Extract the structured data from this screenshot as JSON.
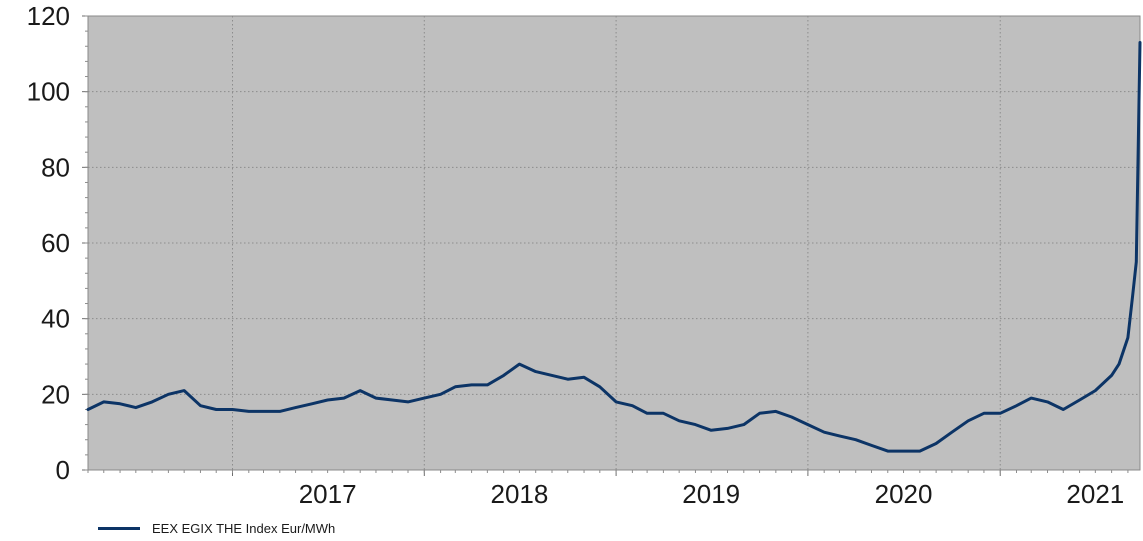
{
  "chart_data": {
    "type": "line",
    "title": "",
    "xlabel": "",
    "ylabel": "",
    "ylim": [
      0,
      120
    ],
    "xlim": [
      "2016-04-01",
      "2021-09-24"
    ],
    "y_ticks": [
      "0",
      "20",
      "40",
      "60",
      "80",
      "100",
      "120"
    ],
    "x_ticks": [
      {
        "label": "2017",
        "date": "2017-01-01"
      },
      {
        "label": "2018",
        "date": "2018-01-01"
      },
      {
        "label": "2019",
        "date": "2019-01-01"
      },
      {
        "label": "2020",
        "date": "2020-01-01"
      },
      {
        "label": "2021",
        "date": "2021-01-01"
      }
    ],
    "grid": true,
    "plot_background": "#bfbfbf",
    "legend_position": "bottom-left",
    "series": [
      {
        "name": "EEX EGIX THE Index Eur/MWh",
        "color": "#0c3466",
        "x": [
          "2016-04-01",
          "2016-05-01",
          "2016-06-01",
          "2016-07-01",
          "2016-08-01",
          "2016-09-01",
          "2016-10-01",
          "2016-11-01",
          "2016-12-01",
          "2017-01-01",
          "2017-02-01",
          "2017-03-01",
          "2017-04-01",
          "2017-05-01",
          "2017-06-01",
          "2017-07-01",
          "2017-08-01",
          "2017-09-01",
          "2017-10-01",
          "2017-11-01",
          "2017-12-01",
          "2018-01-01",
          "2018-02-01",
          "2018-03-01",
          "2018-04-01",
          "2018-05-01",
          "2018-06-01",
          "2018-07-01",
          "2018-08-01",
          "2018-09-01",
          "2018-10-01",
          "2018-11-01",
          "2018-12-01",
          "2019-01-01",
          "2019-02-01",
          "2019-03-01",
          "2019-04-01",
          "2019-05-01",
          "2019-06-01",
          "2019-07-01",
          "2019-08-01",
          "2019-09-01",
          "2019-10-01",
          "2019-11-01",
          "2019-12-01",
          "2020-01-01",
          "2020-02-01",
          "2020-03-01",
          "2020-04-01",
          "2020-05-01",
          "2020-06-01",
          "2020-07-01",
          "2020-08-01",
          "2020-09-01",
          "2020-10-01",
          "2020-11-01",
          "2020-12-01",
          "2021-01-01",
          "2021-02-01",
          "2021-03-01",
          "2021-04-01",
          "2021-05-01",
          "2021-06-01",
          "2021-07-01",
          "2021-08-01",
          "2021-08-15",
          "2021-09-01",
          "2021-09-10",
          "2021-09-17",
          "2021-09-24"
        ],
        "y": [
          16,
          18,
          17.5,
          16.5,
          18,
          20,
          21,
          17,
          16,
          16,
          15.5,
          15.5,
          15.5,
          16.5,
          17.5,
          18.5,
          19,
          21,
          19,
          18.5,
          18,
          19,
          20,
          22,
          22.5,
          22.5,
          25,
          28,
          26,
          25,
          24,
          24.5,
          22,
          18,
          17,
          15,
          15,
          13,
          12,
          10.5,
          11,
          12,
          15,
          15.5,
          14,
          12,
          10,
          9,
          8,
          6.5,
          5,
          5,
          5,
          7,
          10,
          13,
          15,
          15,
          17,
          19,
          18,
          16,
          18.5,
          21,
          25,
          28,
          35,
          46,
          55,
          113
        ]
      }
    ]
  }
}
